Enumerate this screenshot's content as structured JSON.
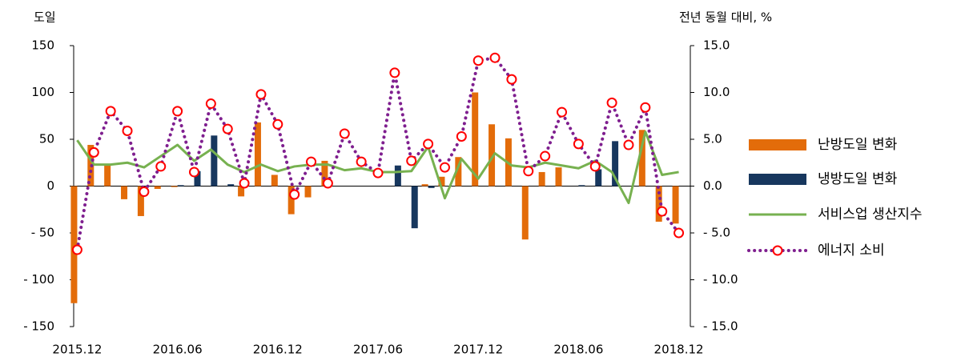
{
  "chart_data": {
    "type": "bar",
    "y_label": "도일",
    "y2_label": "전년 동월 대비, %",
    "categories": [
      "2015.12",
      null,
      null,
      null,
      null,
      null,
      "2016.06",
      null,
      null,
      null,
      null,
      null,
      "2016.12",
      null,
      null,
      null,
      null,
      null,
      "2017.06",
      null,
      null,
      null,
      null,
      null,
      "2017.12",
      null,
      null,
      null,
      null,
      null,
      "2018.06",
      null,
      null,
      null,
      null,
      null,
      "2018.12"
    ],
    "ylim": [
      -150,
      150
    ],
    "yticks": [
      {
        "value": -150,
        "label": "- 150"
      },
      {
        "value": -100,
        "label": "- 100"
      },
      {
        "value": -50,
        "label": "- 50"
      },
      0,
      50,
      100,
      150
    ],
    "y2lim": [
      -15,
      15
    ],
    "y2ticks": [
      {
        "value": -15,
        "label": "- 15.0"
      },
      {
        "value": -10,
        "label": "- 10.0"
      },
      {
        "value": -5,
        "label": "- 5.0"
      },
      {
        "value": 0,
        "label": "0.0"
      },
      {
        "value": 5,
        "label": "5.0"
      },
      {
        "value": 10,
        "label": "10.0"
      },
      {
        "value": 15,
        "label": "15.0"
      }
    ],
    "grid": false,
    "legend": "right",
    "series": [
      {
        "name": "난방도일 변화",
        "type": "bar",
        "color": "#e36c0a",
        "values": [
          -125,
          44,
          22,
          -14,
          -32,
          -3,
          -1,
          0,
          0,
          0,
          -11,
          68,
          12,
          -30,
          -12,
          27,
          0,
          0,
          0,
          0,
          0,
          2,
          10,
          31,
          100,
          66,
          51,
          -57,
          15,
          20,
          0,
          0,
          0,
          0,
          60,
          -38,
          -40
        ]
      },
      {
        "name": "냉방도일 변화",
        "type": "bar",
        "color": "#17375e",
        "values": [
          0,
          0,
          0,
          0,
          0,
          0,
          1,
          16,
          54,
          2,
          0,
          0,
          0,
          0,
          0,
          0,
          0,
          0,
          0,
          22,
          -45,
          -2,
          0,
          0,
          0,
          0,
          0,
          0,
          0,
          0,
          1,
          18,
          48,
          0,
          0,
          0,
          0
        ]
      },
      {
        "name": "서비스업 생산지수",
        "type": "line",
        "axis": "y2",
        "color": "#77b150",
        "values": [
          4.9,
          2.3,
          2.3,
          2.5,
          2.0,
          3.2,
          4.4,
          2.7,
          3.9,
          2.3,
          1.5,
          2.3,
          1.6,
          2.1,
          2.3,
          2.3,
          1.7,
          1.9,
          1.5,
          1.5,
          1.6,
          4.2,
          -1.3,
          2.9,
          0.8,
          3.5,
          2.2,
          2.0,
          2.5,
          2.2,
          1.9,
          2.7,
          1.5,
          -1.8,
          5.8,
          1.2,
          1.5
        ]
      },
      {
        "name": "에너지 소비",
        "type": "line",
        "axis": "y2",
        "color": "#7f1f8f",
        "dash": "dotted",
        "marker": "circle",
        "marker_color": "#ff0000",
        "values": [
          -6.8,
          3.6,
          8.0,
          5.9,
          -0.6,
          2.1,
          8.0,
          1.5,
          8.8,
          6.1,
          0.3,
          9.8,
          6.6,
          -0.9,
          2.6,
          0.3,
          5.6,
          2.6,
          1.4,
          12.1,
          2.7,
          4.5,
          2.0,
          5.3,
          13.4,
          13.7,
          11.4,
          1.6,
          3.2,
          7.9,
          4.5,
          2.1,
          8.9,
          4.4,
          8.4,
          -2.7,
          -5.0
        ]
      }
    ]
  }
}
